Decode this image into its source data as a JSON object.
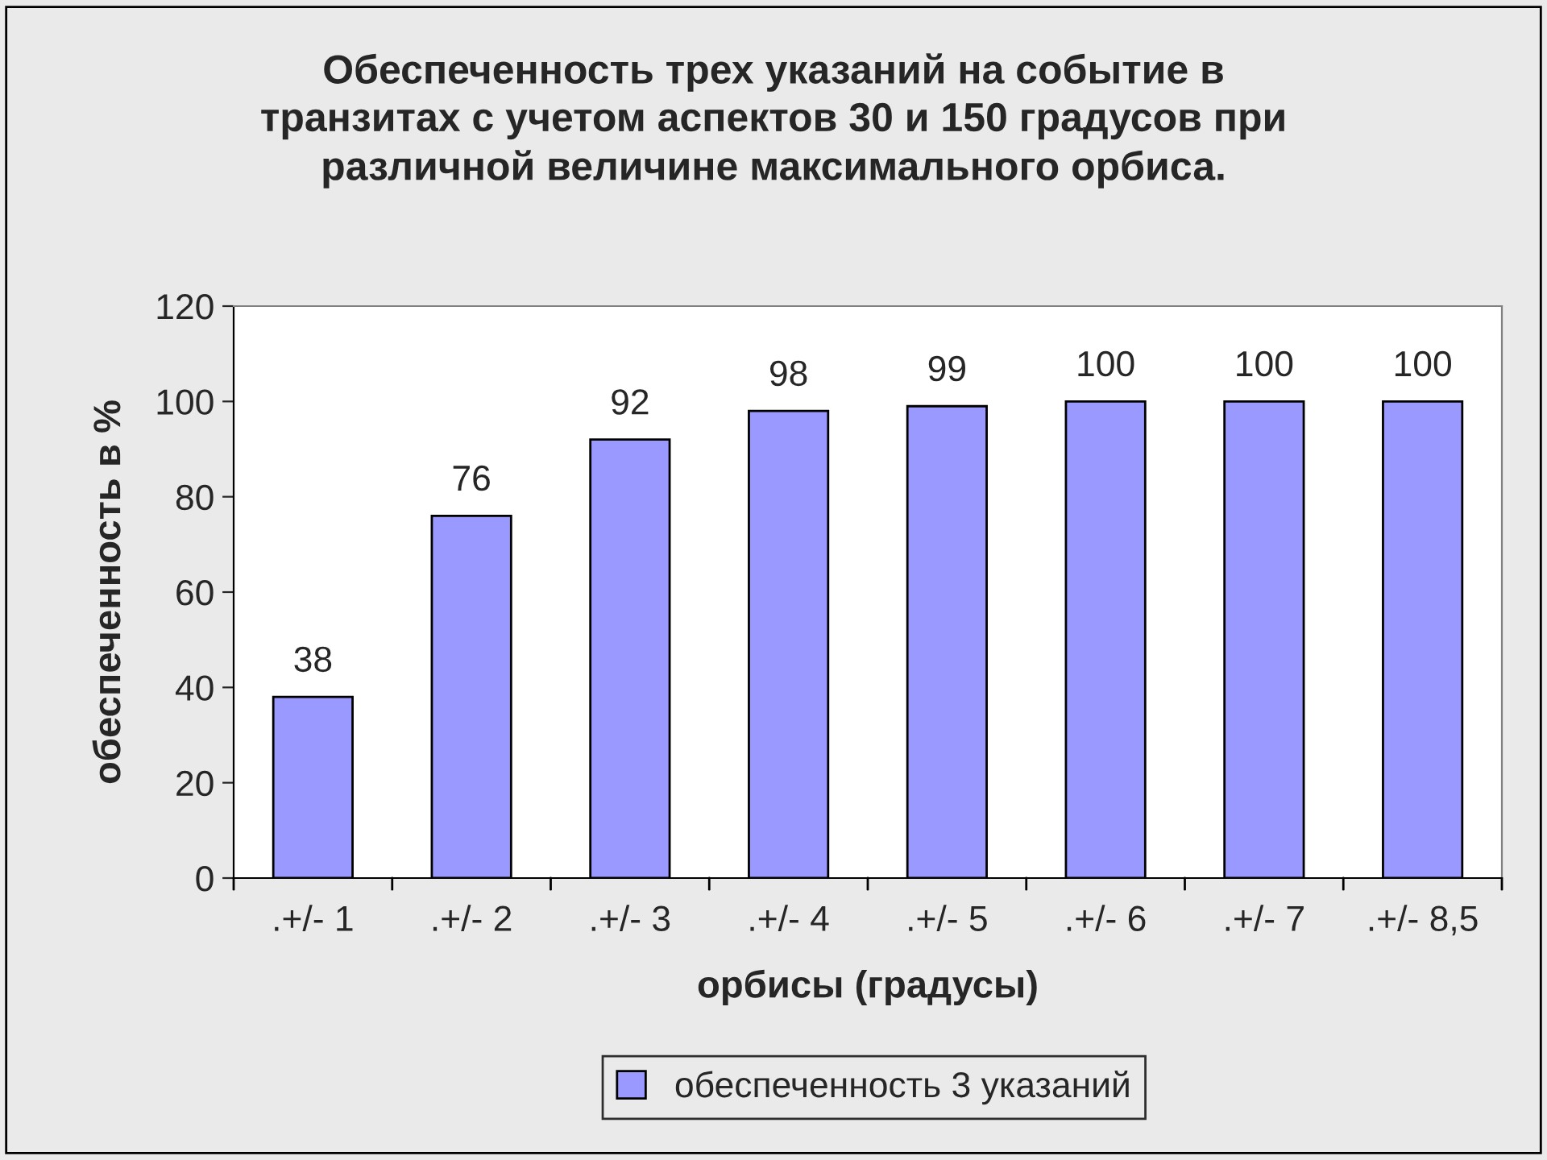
{
  "chart_data": {
    "type": "bar",
    "title": "Обеспеченность трех указаний на событие в\nтранзитах с учетом аспектов 30 и 150 градусов при\nразличной величине максимального орбиса.",
    "xlabel": "орбисы (градусы)",
    "ylabel": "обеспеченность в %",
    "categories": [
      ".+/- 1",
      ".+/- 2",
      ".+/- 3",
      ".+/- 4",
      ".+/- 5",
      ".+/- 6",
      ".+/- 7",
      ".+/- 8,5"
    ],
    "series": [
      {
        "name": "обеспеченность 3 указаний",
        "color": "#9999ff",
        "values": [
          38,
          76,
          92,
          98,
          99,
          100,
          100,
          100
        ]
      }
    ],
    "ylim": [
      0,
      120
    ],
    "yticks": [
      0,
      20,
      40,
      60,
      80,
      100,
      120
    ],
    "data_labels": true,
    "grid": false,
    "legend": "bottom"
  }
}
